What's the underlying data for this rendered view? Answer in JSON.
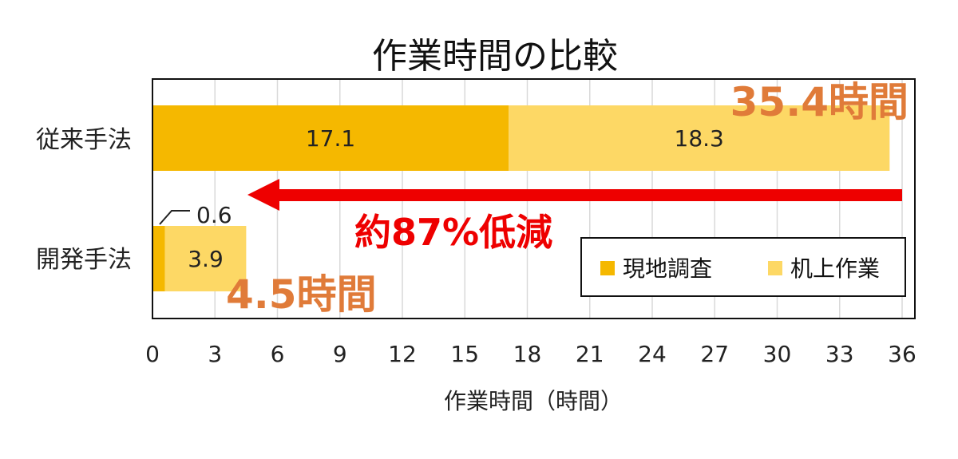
{
  "chart_data": {
    "type": "bar",
    "orientation": "horizontal",
    "stacked": true,
    "title": "作業時間の比較",
    "xlabel": "作業時間（時間）",
    "ylabel": "",
    "xlim": [
      0,
      36
    ],
    "xticks": [
      "0",
      "3",
      "6",
      "9",
      "12",
      "15",
      "18",
      "21",
      "24",
      "27",
      "30",
      "33",
      "36"
    ],
    "categories": [
      "従来手法",
      "開発手法"
    ],
    "series": [
      {
        "name": "現地調査",
        "values": [
          17.1,
          0.6
        ],
        "labels": [
          "17.1",
          "0.6"
        ],
        "color": "#f5b800"
      },
      {
        "name": "机上作業",
        "values": [
          18.3,
          3.9
        ],
        "labels": [
          "18.3",
          "3.9"
        ],
        "color": "#fdd865"
      }
    ],
    "totals": [
      "35.4時間",
      "4.5時間"
    ],
    "annotation": "約87%低減",
    "annotation_color": "#ee0000",
    "total_color": "#e07b39",
    "grid": true,
    "legend_position": "inside bottom-right"
  }
}
